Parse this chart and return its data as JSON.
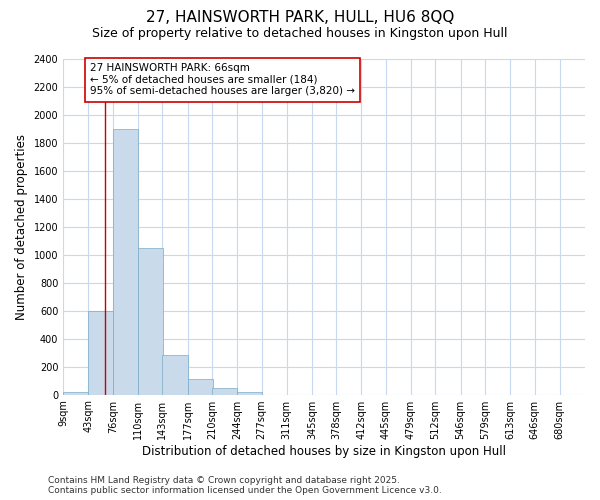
{
  "title": "27, HAINSWORTH PARK, HULL, HU6 8QQ",
  "subtitle": "Size of property relative to detached houses in Kingston upon Hull",
  "xlabel": "Distribution of detached houses by size in Kingston upon Hull",
  "ylabel": "Number of detached properties",
  "bar_color": "#c9daea",
  "bar_edge_color": "#7aaac8",
  "background_color": "#ffffff",
  "grid_color": "#c8d8f0",
  "bins": [
    "9sqm",
    "43sqm",
    "76sqm",
    "110sqm",
    "143sqm",
    "177sqm",
    "210sqm",
    "244sqm",
    "277sqm",
    "311sqm",
    "345sqm",
    "378sqm",
    "412sqm",
    "445sqm",
    "479sqm",
    "512sqm",
    "546sqm",
    "579sqm",
    "613sqm",
    "646sqm",
    "680sqm"
  ],
  "bin_edges": [
    9,
    43,
    76,
    110,
    143,
    177,
    210,
    244,
    277,
    311,
    345,
    378,
    412,
    445,
    479,
    512,
    546,
    579,
    613,
    646,
    680
  ],
  "values": [
    20,
    600,
    1900,
    1050,
    285,
    115,
    50,
    20,
    0,
    0,
    0,
    0,
    0,
    0,
    0,
    0,
    0,
    0,
    0,
    0
  ],
  "vline_x": 66,
  "vline_color": "#cc0000",
  "annotation_text": "27 HAINSWORTH PARK: 66sqm\n← 5% of detached houses are smaller (184)\n95% of semi-detached houses are larger (3,820) →",
  "annotation_box_color": "#ffffff",
  "annotation_box_edge": "#cc0000",
  "ylim": [
    0,
    2400
  ],
  "yticks": [
    0,
    200,
    400,
    600,
    800,
    1000,
    1200,
    1400,
    1600,
    1800,
    2000,
    2200,
    2400
  ],
  "footer_text": "Contains HM Land Registry data © Crown copyright and database right 2025.\nContains public sector information licensed under the Open Government Licence v3.0.",
  "title_fontsize": 11,
  "subtitle_fontsize": 9,
  "axis_label_fontsize": 8.5,
  "tick_fontsize": 7,
  "annotation_fontsize": 7.5,
  "footer_fontsize": 6.5,
  "bin_width": 34
}
